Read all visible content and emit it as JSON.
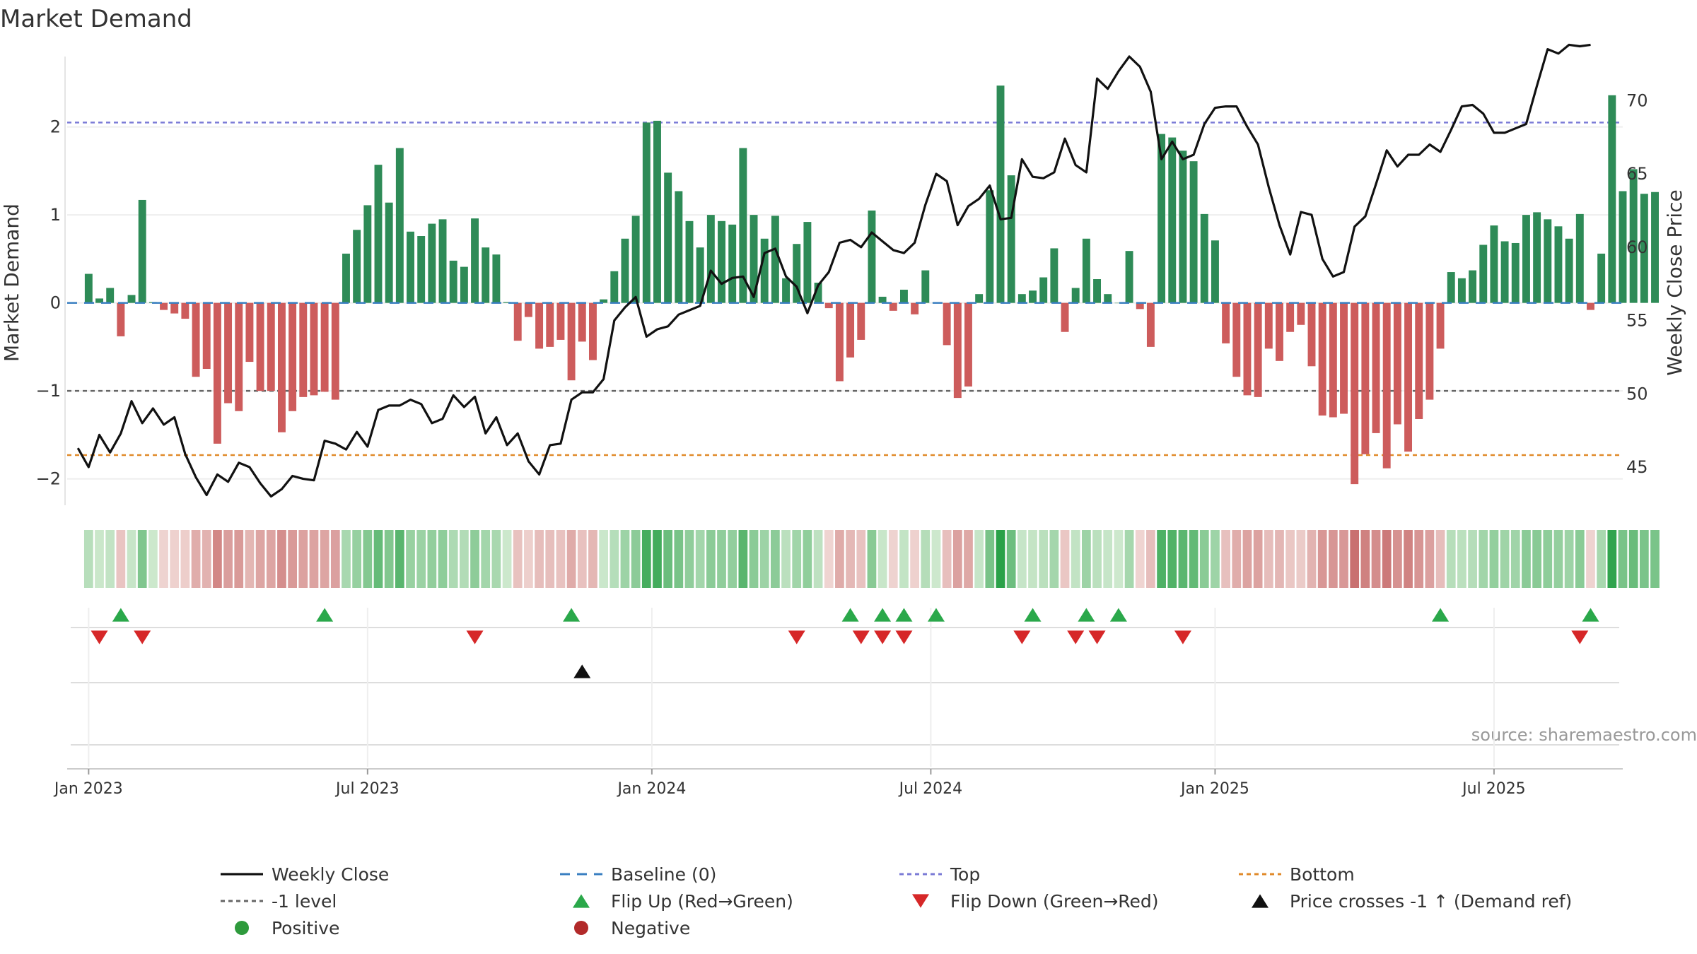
{
  "chart_data": {
    "type": "bar",
    "title": "Market Demand",
    "ylabel_left": "Market Demand",
    "ylabel_right": "Weekly Close Price",
    "source": "source: sharemaestro.com",
    "ylim_left": [
      -2.3,
      2.8
    ],
    "ylim_right": [
      42.4,
      73.0
    ],
    "left_ticks": [
      {
        "v": 2,
        "label": "2"
      },
      {
        "v": 1,
        "label": "1"
      },
      {
        "v": 0,
        "label": "0"
      },
      {
        "v": -1,
        "label": "−1"
      },
      {
        "v": -2,
        "label": "−2"
      }
    ],
    "right_ticks": [
      {
        "v": 70,
        "label": "70"
      },
      {
        "v": 65,
        "label": "65"
      },
      {
        "v": 60,
        "label": "60"
      },
      {
        "v": 55,
        "label": "55"
      },
      {
        "v": 50,
        "label": "50"
      },
      {
        "v": 45,
        "label": "45"
      }
    ],
    "x_domain_weeks": [
      -2,
      143
    ],
    "x_ticks": [
      {
        "week": 0,
        "label": "Jan 2023"
      },
      {
        "week": 26,
        "label": "Jul 2023"
      },
      {
        "week": 52.5,
        "label": "Jan 2024"
      },
      {
        "week": 78.5,
        "label": "Jul 2024"
      },
      {
        "week": 105,
        "label": "Jan 2025"
      },
      {
        "week": 131,
        "label": "Jul 2025"
      }
    ],
    "reference_lines": [
      {
        "name": "Top",
        "value": 2.05,
        "axis": "left",
        "color": "#7b7bd6"
      },
      {
        "name": "-1 level",
        "value": -1.0,
        "axis": "left",
        "color": "#666666"
      },
      {
        "name": "Bottom",
        "value": -1.73,
        "axis": "left",
        "color": "#e08a2a"
      }
    ],
    "demand": [
      0.33,
      0.05,
      0.17,
      -0.38,
      0.09,
      1.17,
      0.01,
      -0.08,
      -0.12,
      -0.18,
      -0.84,
      -0.75,
      -1.6,
      -1.14,
      -1.23,
      -0.67,
      -1.0,
      -1.0,
      -1.47,
      -1.23,
      -1.07,
      -1.05,
      -1.01,
      -1.1,
      0.56,
      0.83,
      1.11,
      1.57,
      1.14,
      1.76,
      0.81,
      0.76,
      0.9,
      0.95,
      0.48,
      0.41,
      0.96,
      0.63,
      0.55,
      0.01,
      -0.43,
      -0.16,
      -0.52,
      -0.5,
      -0.42,
      -0.88,
      -0.44,
      -0.65,
      0.04,
      0.36,
      0.73,
      0.99,
      2.05,
      2.07,
      1.48,
      1.27,
      0.93,
      0.63,
      1.0,
      0.93,
      0.89,
      1.76,
      1.0,
      0.73,
      0.99,
      0.28,
      0.67,
      0.92,
      0.23,
      -0.06,
      -0.89,
      -0.62,
      -0.42,
      1.05,
      0.07,
      -0.09,
      0.15,
      -0.13,
      0.37,
      0.0,
      -0.48,
      -1.08,
      -0.95,
      0.1,
      1.28,
      2.47,
      1.45,
      0.1,
      0.14,
      0.29,
      0.62,
      -0.33,
      0.17,
      0.73,
      0.27,
      0.1,
      0.0,
      0.59,
      -0.07,
      -0.5,
      1.92,
      1.88,
      1.73,
      1.61,
      1.01,
      0.71,
      -0.46,
      -0.84,
      -1.05,
      -1.07,
      -0.52,
      -0.66,
      -0.33,
      -0.25,
      -0.72,
      -1.28,
      -1.3,
      -1.26,
      -2.06,
      -1.72,
      -1.48,
      -1.88,
      -1.38,
      -1.69,
      -1.32,
      -1.1,
      -0.52,
      0.35,
      0.28,
      0.37,
      0.66,
      0.88,
      0.7,
      0.68,
      1.0,
      1.03,
      0.95,
      0.87,
      0.73,
      1.01,
      -0.08,
      0.56,
      2.36,
      1.27,
      1.52,
      1.24,
      1.26
    ],
    "weekly_close": [
      [
        -1,
        46.3
      ],
      [
        0,
        45.0
      ],
      [
        1,
        47.2
      ],
      [
        2,
        46.0
      ],
      [
        3,
        47.3
      ],
      [
        4,
        49.5
      ],
      [
        5,
        48.0
      ],
      [
        6,
        49.0
      ],
      [
        7,
        47.9
      ],
      [
        8,
        48.4
      ],
      [
        9,
        45.9
      ],
      [
        10,
        44.3
      ],
      [
        11,
        43.1
      ],
      [
        12,
        44.5
      ],
      [
        13,
        44.0
      ],
      [
        14,
        45.3
      ],
      [
        15,
        45.0
      ],
      [
        16,
        43.9
      ],
      [
        17,
        43.0
      ],
      [
        18,
        43.5
      ],
      [
        19,
        44.4
      ],
      [
        20,
        44.2
      ],
      [
        21,
        44.1
      ],
      [
        22,
        46.8
      ],
      [
        23,
        46.6
      ],
      [
        24,
        46.2
      ],
      [
        25,
        47.4
      ],
      [
        26,
        46.4
      ],
      [
        27,
        48.9
      ],
      [
        28,
        49.2
      ],
      [
        29,
        49.2
      ],
      [
        30,
        49.6
      ],
      [
        31,
        49.3
      ],
      [
        32,
        48.0
      ],
      [
        33,
        48.3
      ],
      [
        34,
        49.9
      ],
      [
        35,
        49.1
      ],
      [
        36,
        49.8
      ],
      [
        37,
        47.3
      ],
      [
        38,
        48.4
      ],
      [
        39,
        46.5
      ],
      [
        40,
        47.3
      ],
      [
        41,
        45.4
      ],
      [
        42,
        44.5
      ],
      [
        43,
        46.5
      ],
      [
        44,
        46.6
      ],
      [
        45,
        49.6
      ],
      [
        46,
        50.1
      ],
      [
        47,
        50.1
      ],
      [
        48,
        51.0
      ],
      [
        49,
        55.0
      ],
      [
        50,
        55.9
      ],
      [
        51,
        56.6
      ],
      [
        52,
        53.9
      ],
      [
        53,
        54.4
      ],
      [
        54,
        54.6
      ],
      [
        55,
        55.4
      ],
      [
        56,
        55.7
      ],
      [
        57,
        56.0
      ],
      [
        58,
        58.4
      ],
      [
        59,
        57.5
      ],
      [
        60,
        57.9
      ],
      [
        61,
        58.0
      ],
      [
        62,
        56.6
      ],
      [
        63,
        59.6
      ],
      [
        64,
        59.9
      ],
      [
        65,
        58.0
      ],
      [
        66,
        57.3
      ],
      [
        67,
        55.5
      ],
      [
        68,
        57.4
      ],
      [
        69,
        58.3
      ],
      [
        70,
        60.3
      ],
      [
        71,
        60.5
      ],
      [
        72,
        60.0
      ],
      [
        73,
        61.0
      ],
      [
        74,
        60.4
      ],
      [
        75,
        59.8
      ],
      [
        76,
        59.6
      ],
      [
        77,
        60.3
      ],
      [
        78,
        62.9
      ],
      [
        79,
        65.0
      ],
      [
        80,
        64.5
      ],
      [
        81,
        61.5
      ],
      [
        82,
        62.8
      ],
      [
        83,
        63.3
      ],
      [
        84,
        64.2
      ],
      [
        85,
        61.9
      ],
      [
        86,
        62.0
      ],
      [
        87,
        66.0
      ],
      [
        88,
        64.8
      ],
      [
        89,
        64.7
      ],
      [
        90,
        65.1
      ],
      [
        91,
        67.4
      ],
      [
        92,
        65.6
      ],
      [
        93,
        65.1
      ],
      [
        94,
        71.5
      ],
      [
        95,
        70.8
      ],
      [
        96,
        72.0
      ],
      [
        97,
        73.0
      ],
      [
        98,
        72.3
      ],
      [
        99,
        70.6
      ],
      [
        100,
        66.0
      ],
      [
        101,
        67.2
      ],
      [
        102,
        66.0
      ],
      [
        103,
        66.3
      ],
      [
        104,
        68.4
      ],
      [
        105,
        69.5
      ],
      [
        106,
        69.6
      ],
      [
        107,
        69.6
      ],
      [
        108,
        68.2
      ],
      [
        109,
        67.0
      ],
      [
        110,
        64.1
      ],
      [
        111,
        61.5
      ],
      [
        112,
        59.5
      ],
      [
        113,
        62.4
      ],
      [
        114,
        62.2
      ],
      [
        115,
        59.2
      ],
      [
        116,
        58.0
      ],
      [
        117,
        58.3
      ],
      [
        118,
        61.4
      ],
      [
        119,
        62.1
      ],
      [
        120,
        64.3
      ],
      [
        121,
        66.6
      ],
      [
        122,
        65.5
      ],
      [
        123,
        66.3
      ],
      [
        124,
        66.3
      ],
      [
        125,
        67.0
      ],
      [
        126,
        66.5
      ],
      [
        127,
        68.0
      ],
      [
        128,
        69.6
      ],
      [
        129,
        69.7
      ],
      [
        130,
        69.1
      ],
      [
        131,
        67.8
      ],
      [
        132,
        67.8
      ],
      [
        133,
        68.1
      ],
      [
        134,
        68.4
      ],
      [
        135,
        71.0
      ],
      [
        136,
        73.5
      ],
      [
        137,
        73.2
      ],
      [
        138,
        73.8
      ],
      [
        139,
        73.7
      ],
      [
        140,
        73.8
      ]
    ],
    "flip_up_weeks": [
      3,
      22,
      45,
      71,
      74,
      76,
      79,
      88,
      93,
      96,
      126,
      140
    ],
    "flip_down_weeks": [
      1,
      5,
      36,
      66,
      72,
      74,
      76,
      87,
      92,
      94,
      102,
      139
    ],
    "price_cross_weeks": [
      46
    ],
    "legend": [
      {
        "label": "Weekly Close",
        "kind": "line",
        "color": "#111111"
      },
      {
        "label": "Baseline (0)",
        "kind": "dash",
        "color": "#3a7fc1"
      },
      {
        "label": "Top",
        "kind": "dot",
        "color": "#7b7bd6"
      },
      {
        "label": "Bottom",
        "kind": "dot",
        "color": "#e08a2a"
      },
      {
        "label": "-1 level",
        "kind": "dot",
        "color": "#666666"
      },
      {
        "label": "Flip Up (Red→Green)",
        "kind": "tri-up",
        "color": "#2aa84a"
      },
      {
        "label": "Flip Down (Green→Red)",
        "kind": "tri-down",
        "color": "#d62728"
      },
      {
        "label": "Price crosses -1 ↑ (Demand ref)",
        "kind": "tri-up",
        "color": "#111111"
      },
      {
        "label": "Positive",
        "kind": "circle",
        "color": "#2e9a3c"
      },
      {
        "label": "Negative",
        "kind": "circle",
        "color": "#b22a2a"
      }
    ],
    "colors": {
      "positive_bar": "#2e8b57",
      "negative_bar": "#cd5c5c",
      "price_line": "#111111",
      "baseline": "#3a7fc1"
    }
  }
}
